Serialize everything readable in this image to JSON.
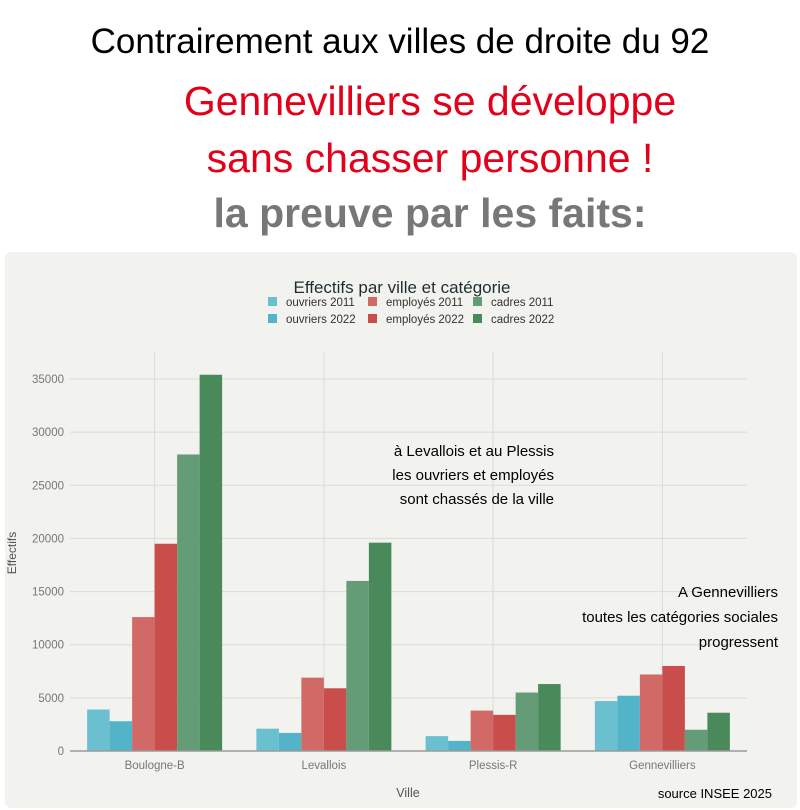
{
  "headline": {
    "line1": "Contrairement aux villes de droite du 92",
    "line2": "Gennevilliers se développe",
    "line3": "sans chasser personne !",
    "line4": "la preuve par les faits:"
  },
  "annotations": {
    "levallois": [
      "à Levallois et au Plessis",
      "les ouvriers et employés",
      "sont chassés de la ville"
    ],
    "gennevilliers": [
      "A Gennevilliers",
      "toutes les catégories sociales",
      "progressent"
    ],
    "source": "source INSEE 2025"
  },
  "chart_data": {
    "type": "bar",
    "title": "Effectifs par ville et catégorie",
    "xlabel": "Ville",
    "ylabel": "Effectifs",
    "ylim": [
      0,
      37000
    ],
    "yticks": [
      0,
      5000,
      10000,
      15000,
      20000,
      25000,
      30000,
      35000
    ],
    "grid": true,
    "legend_position": "top-center",
    "categories": [
      "Boulogne-B",
      "Levallois",
      "Plessis-R",
      "Gennevilliers"
    ],
    "series": [
      {
        "name": "ouvriers 2011",
        "color": "#6bc0d0",
        "values": [
          3900,
          2100,
          1400,
          4700
        ]
      },
      {
        "name": "ouvriers 2022",
        "color": "#52b3c9",
        "values": [
          2800,
          1700,
          950,
          5200
        ]
      },
      {
        "name": "employés 2011",
        "color": "#d16a66",
        "values": [
          12600,
          6900,
          3800,
          7200
        ]
      },
      {
        "name": "employés 2022",
        "color": "#c94d4a",
        "values": [
          19500,
          5900,
          3400,
          8000
        ]
      },
      {
        "name": "cadres 2011",
        "color": "#659c78",
        "values": [
          27900,
          16000,
          5500,
          2000
        ]
      },
      {
        "name": "cadres 2022",
        "color": "#4a8a5a",
        "values": [
          35400,
          19600,
          6300,
          3600
        ]
      }
    ]
  }
}
